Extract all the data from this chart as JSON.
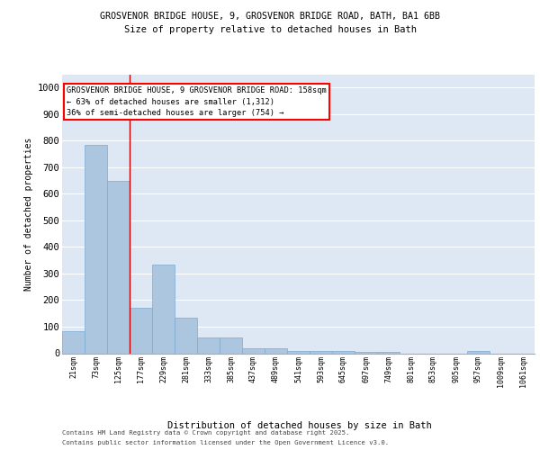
{
  "title_line1": "GROSVENOR BRIDGE HOUSE, 9, GROSVENOR BRIDGE ROAD, BATH, BA1 6BB",
  "title_line2": "Size of property relative to detached houses in Bath",
  "xlabel": "Distribution of detached houses by size in Bath",
  "ylabel": "Number of detached properties",
  "bar_color": "#adc6e0",
  "bar_edgecolor": "#7aaad0",
  "categories": [
    "21sqm",
    "73sqm",
    "125sqm",
    "177sqm",
    "229sqm",
    "281sqm",
    "333sqm",
    "385sqm",
    "437sqm",
    "489sqm",
    "541sqm",
    "593sqm",
    "645sqm",
    "697sqm",
    "749sqm",
    "801sqm",
    "853sqm",
    "905sqm",
    "957sqm",
    "1009sqm",
    "1061sqm"
  ],
  "values": [
    83,
    783,
    648,
    170,
    335,
    133,
    60,
    60,
    20,
    18,
    10,
    8,
    8,
    5,
    5,
    0,
    0,
    0,
    7,
    0,
    0
  ],
  "ylim": [
    0,
    1050
  ],
  "yticks": [
    0,
    100,
    200,
    300,
    400,
    500,
    600,
    700,
    800,
    900,
    1000
  ],
  "vline_color": "#cc0000",
  "annotation_title": "GROSVENOR BRIDGE HOUSE, 9 GROSVENOR BRIDGE ROAD: 158sqm",
  "annotation_line2": "← 63% of detached houses are smaller (1,312)",
  "annotation_line3": "36% of semi-detached houses are larger (754) →",
  "footer_line1": "Contains HM Land Registry data © Crown copyright and database right 2025.",
  "footer_line2": "Contains public sector information licensed under the Open Government Licence v3.0.",
  "background_color": "#dde8f4",
  "grid_color": "#ffffff",
  "fig_background": "#ffffff"
}
